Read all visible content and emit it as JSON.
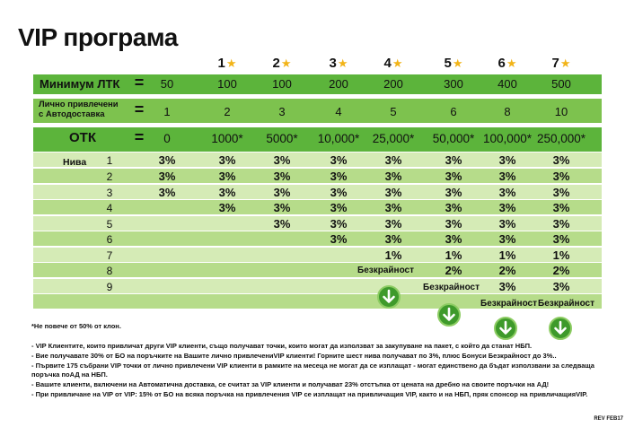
{
  "title": "VIP програма",
  "stars": [
    "1",
    "2",
    "3",
    "4",
    "5",
    "6",
    "7"
  ],
  "rows": {
    "ltk": {
      "label": "Минимум ЛТК",
      "eq": "=",
      "values": [
        "50",
        "100",
        "100",
        "200",
        "200",
        "300",
        "400",
        "500"
      ]
    },
    "personal": {
      "label_line1": "Лично привлечени",
      "label_line2": "с Автодоставка",
      "eq": "=",
      "values": [
        "1",
        "2",
        "3",
        "4",
        "5",
        "6",
        "8",
        "10"
      ]
    },
    "otk": {
      "label": "ОТК",
      "eq": "=",
      "values": [
        "0",
        "1000*",
        "5000*",
        "10,000*",
        "25,000*",
        "50,000*",
        "100,000*",
        "250,000*"
      ]
    }
  },
  "levels_label": "Нива",
  "levels": [
    {
      "num": "1",
      "values": [
        "3%",
        "3%",
        "3%",
        "3%",
        "3%",
        "3%",
        "3%",
        "3%"
      ]
    },
    {
      "num": "2",
      "values": [
        "3%",
        "3%",
        "3%",
        "3%",
        "3%",
        "3%",
        "3%",
        "3%"
      ]
    },
    {
      "num": "3",
      "values": [
        "3%",
        "3%",
        "3%",
        "3%",
        "3%",
        "3%",
        "3%",
        "3%"
      ]
    },
    {
      "num": "4",
      "values": [
        "",
        "3%",
        "3%",
        "3%",
        "3%",
        "3%",
        "3%",
        "3%"
      ]
    },
    {
      "num": "5",
      "values": [
        "",
        "",
        "3%",
        "3%",
        "3%",
        "3%",
        "3%",
        "3%"
      ]
    },
    {
      "num": "6",
      "values": [
        "",
        "",
        "",
        "3%",
        "3%",
        "3%",
        "3%",
        "3%"
      ]
    },
    {
      "num": "7",
      "values": [
        "",
        "",
        "",
        "",
        "1%",
        "1%",
        "1%",
        "1%"
      ]
    },
    {
      "num": "8",
      "values": [
        "",
        "",
        "",
        "",
        "",
        "2%",
        "2%",
        "2%"
      ]
    },
    {
      "num": "9",
      "values": [
        "",
        "",
        "",
        "",
        "",
        "",
        "3%",
        "3%"
      ]
    }
  ],
  "infinity": {
    "col4": "Безкрайност",
    "col5": "Безкрайност",
    "col6": "Безкрайност",
    "col7": "Безкрайност"
  },
  "footnotes": [
    "*Не повече от 50% от клон.",
    "- VIP Клиентите, които привличат други VIP клиенти, също получават точки, които могат да използват за  закупуване на пакет, с който да станат НБП.",
    "- Вие получавате 30% от БО на поръчките на Вашите лично привлечениVIP клиенти! Горните шест нива получават по 3%, плюс Бонуси Безкрайност до 3%..",
    "- Първите 175 събрани VIP точки от лично привлечени VIP клиенти в рамките на месеца не могат да се изплащат - могат единствено да бъдат използвани за следваща",
    "  поръчка поАД на НБП.",
    "- Вашите клиенти, включени на Автоматична доставка, се считат за VIP клиенти и получават 23% отстъпка от цената на дребно на своите поръчки на АД!",
    "- При привличане на VIP от VIP: 15% от БО на всяка поръчка на привлечения VIP се изплащат на привличащия VIP, както и на НБП, пряк спонсор на привличащияVIP."
  ],
  "footer_code": "REV FEB17",
  "colors": {
    "band_dark": "#5cb43b",
    "band_light": "#b6dc8a",
    "star": "#f2b418",
    "arrow": "#3e9a2b"
  }
}
